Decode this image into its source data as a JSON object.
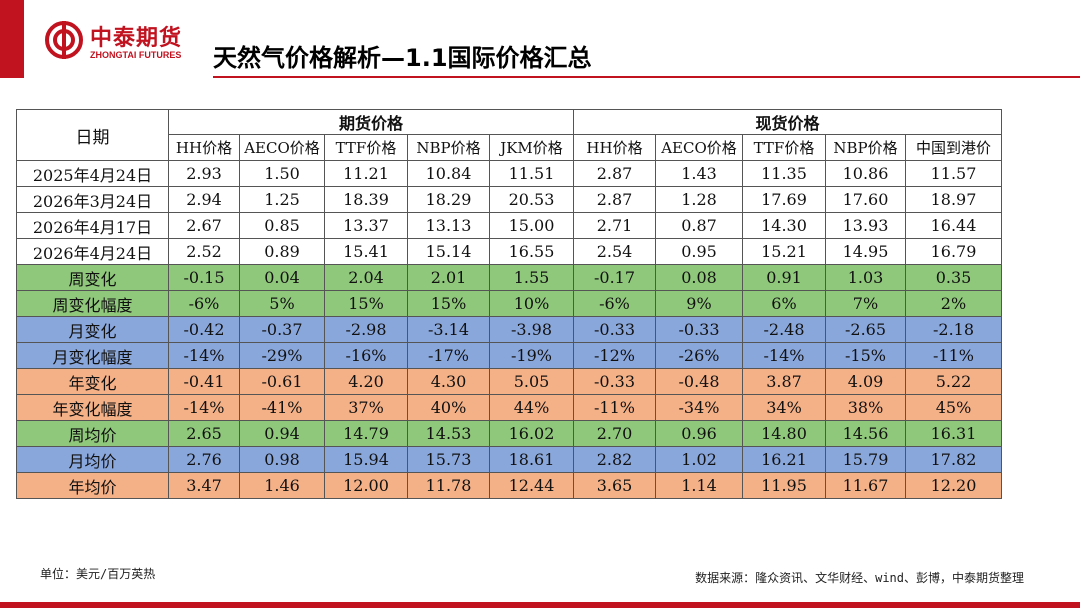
{
  "brand": {
    "logo_cn": "中泰期货",
    "logo_en": "ZHONGTAI FUTURES",
    "accent_color": "#c1121f"
  },
  "slide": {
    "title": "天然气价格解析—1.1国际价格汇总"
  },
  "table": {
    "date_header": "日期",
    "group_futures": "期货价格",
    "group_spot": "现货价格",
    "columns": [
      "HH价格",
      "AECO价格",
      "TTF价格",
      "NBP价格",
      "JKM价格",
      "HH价格",
      "AECO价格",
      "TTF价格",
      "NBP价格",
      "中国到港价"
    ],
    "rows": [
      {
        "label": "2025年4月24日",
        "color": "white",
        "values": [
          "2.93",
          "1.50",
          "11.21",
          "10.84",
          "11.51",
          "2.87",
          "1.43",
          "11.35",
          "10.86",
          "11.57"
        ]
      },
      {
        "label": "2026年3月24日",
        "color": "white",
        "values": [
          "2.94",
          "1.25",
          "18.39",
          "18.29",
          "20.53",
          "2.87",
          "1.28",
          "17.69",
          "17.60",
          "18.97"
        ]
      },
      {
        "label": "2026年4月17日",
        "color": "white",
        "values": [
          "2.67",
          "0.85",
          "13.37",
          "13.13",
          "15.00",
          "2.71",
          "0.87",
          "14.30",
          "13.93",
          "16.44"
        ]
      },
      {
        "label": "2026年4月24日",
        "color": "white",
        "values": [
          "2.52",
          "0.89",
          "15.41",
          "15.14",
          "16.55",
          "2.54",
          "0.95",
          "15.21",
          "14.95",
          "16.79"
        ]
      },
      {
        "label": "周变化",
        "color": "green",
        "values": [
          "-0.15",
          "0.04",
          "2.04",
          "2.01",
          "1.55",
          "-0.17",
          "0.08",
          "0.91",
          "1.03",
          "0.35"
        ]
      },
      {
        "label": "周变化幅度",
        "color": "green",
        "values": [
          "-6%",
          "5%",
          "15%",
          "15%",
          "10%",
          "-6%",
          "9%",
          "6%",
          "7%",
          "2%"
        ]
      },
      {
        "label": "月变化",
        "color": "blue",
        "values": [
          "-0.42",
          "-0.37",
          "-2.98",
          "-3.14",
          "-3.98",
          "-0.33",
          "-0.33",
          "-2.48",
          "-2.65",
          "-2.18"
        ]
      },
      {
        "label": "月变化幅度",
        "color": "blue",
        "values": [
          "-14%",
          "-29%",
          "-16%",
          "-17%",
          "-19%",
          "-12%",
          "-26%",
          "-14%",
          "-15%",
          "-11%"
        ]
      },
      {
        "label": "年变化",
        "color": "orange",
        "values": [
          "-0.41",
          "-0.61",
          "4.20",
          "4.30",
          "5.05",
          "-0.33",
          "-0.48",
          "3.87",
          "4.09",
          "5.22"
        ]
      },
      {
        "label": "年变化幅度",
        "color": "orange",
        "values": [
          "-14%",
          "-41%",
          "37%",
          "40%",
          "44%",
          "-11%",
          "-34%",
          "34%",
          "38%",
          "45%"
        ]
      },
      {
        "label": "周均价",
        "color": "green",
        "values": [
          "2.65",
          "0.94",
          "14.79",
          "14.53",
          "16.02",
          "2.70",
          "0.96",
          "14.80",
          "14.56",
          "16.31"
        ]
      },
      {
        "label": "月均价",
        "color": "blue",
        "values": [
          "2.76",
          "0.98",
          "15.94",
          "15.73",
          "18.61",
          "2.82",
          "1.02",
          "16.21",
          "15.79",
          "17.82"
        ]
      },
      {
        "label": "年均价",
        "color": "orange",
        "values": [
          "3.47",
          "1.46",
          "12.00",
          "11.78",
          "12.44",
          "3.65",
          "1.14",
          "11.95",
          "11.67",
          "12.20"
        ]
      }
    ],
    "row_colors": {
      "white": "#ffffff",
      "green": "#8fc77b",
      "blue": "#8aa7dc",
      "orange": "#f4b087"
    }
  },
  "footer": {
    "unit": "单位：美元/百万英热",
    "source": "数据来源：隆众资讯、文华财经、wind、彭博，中泰期货整理"
  }
}
